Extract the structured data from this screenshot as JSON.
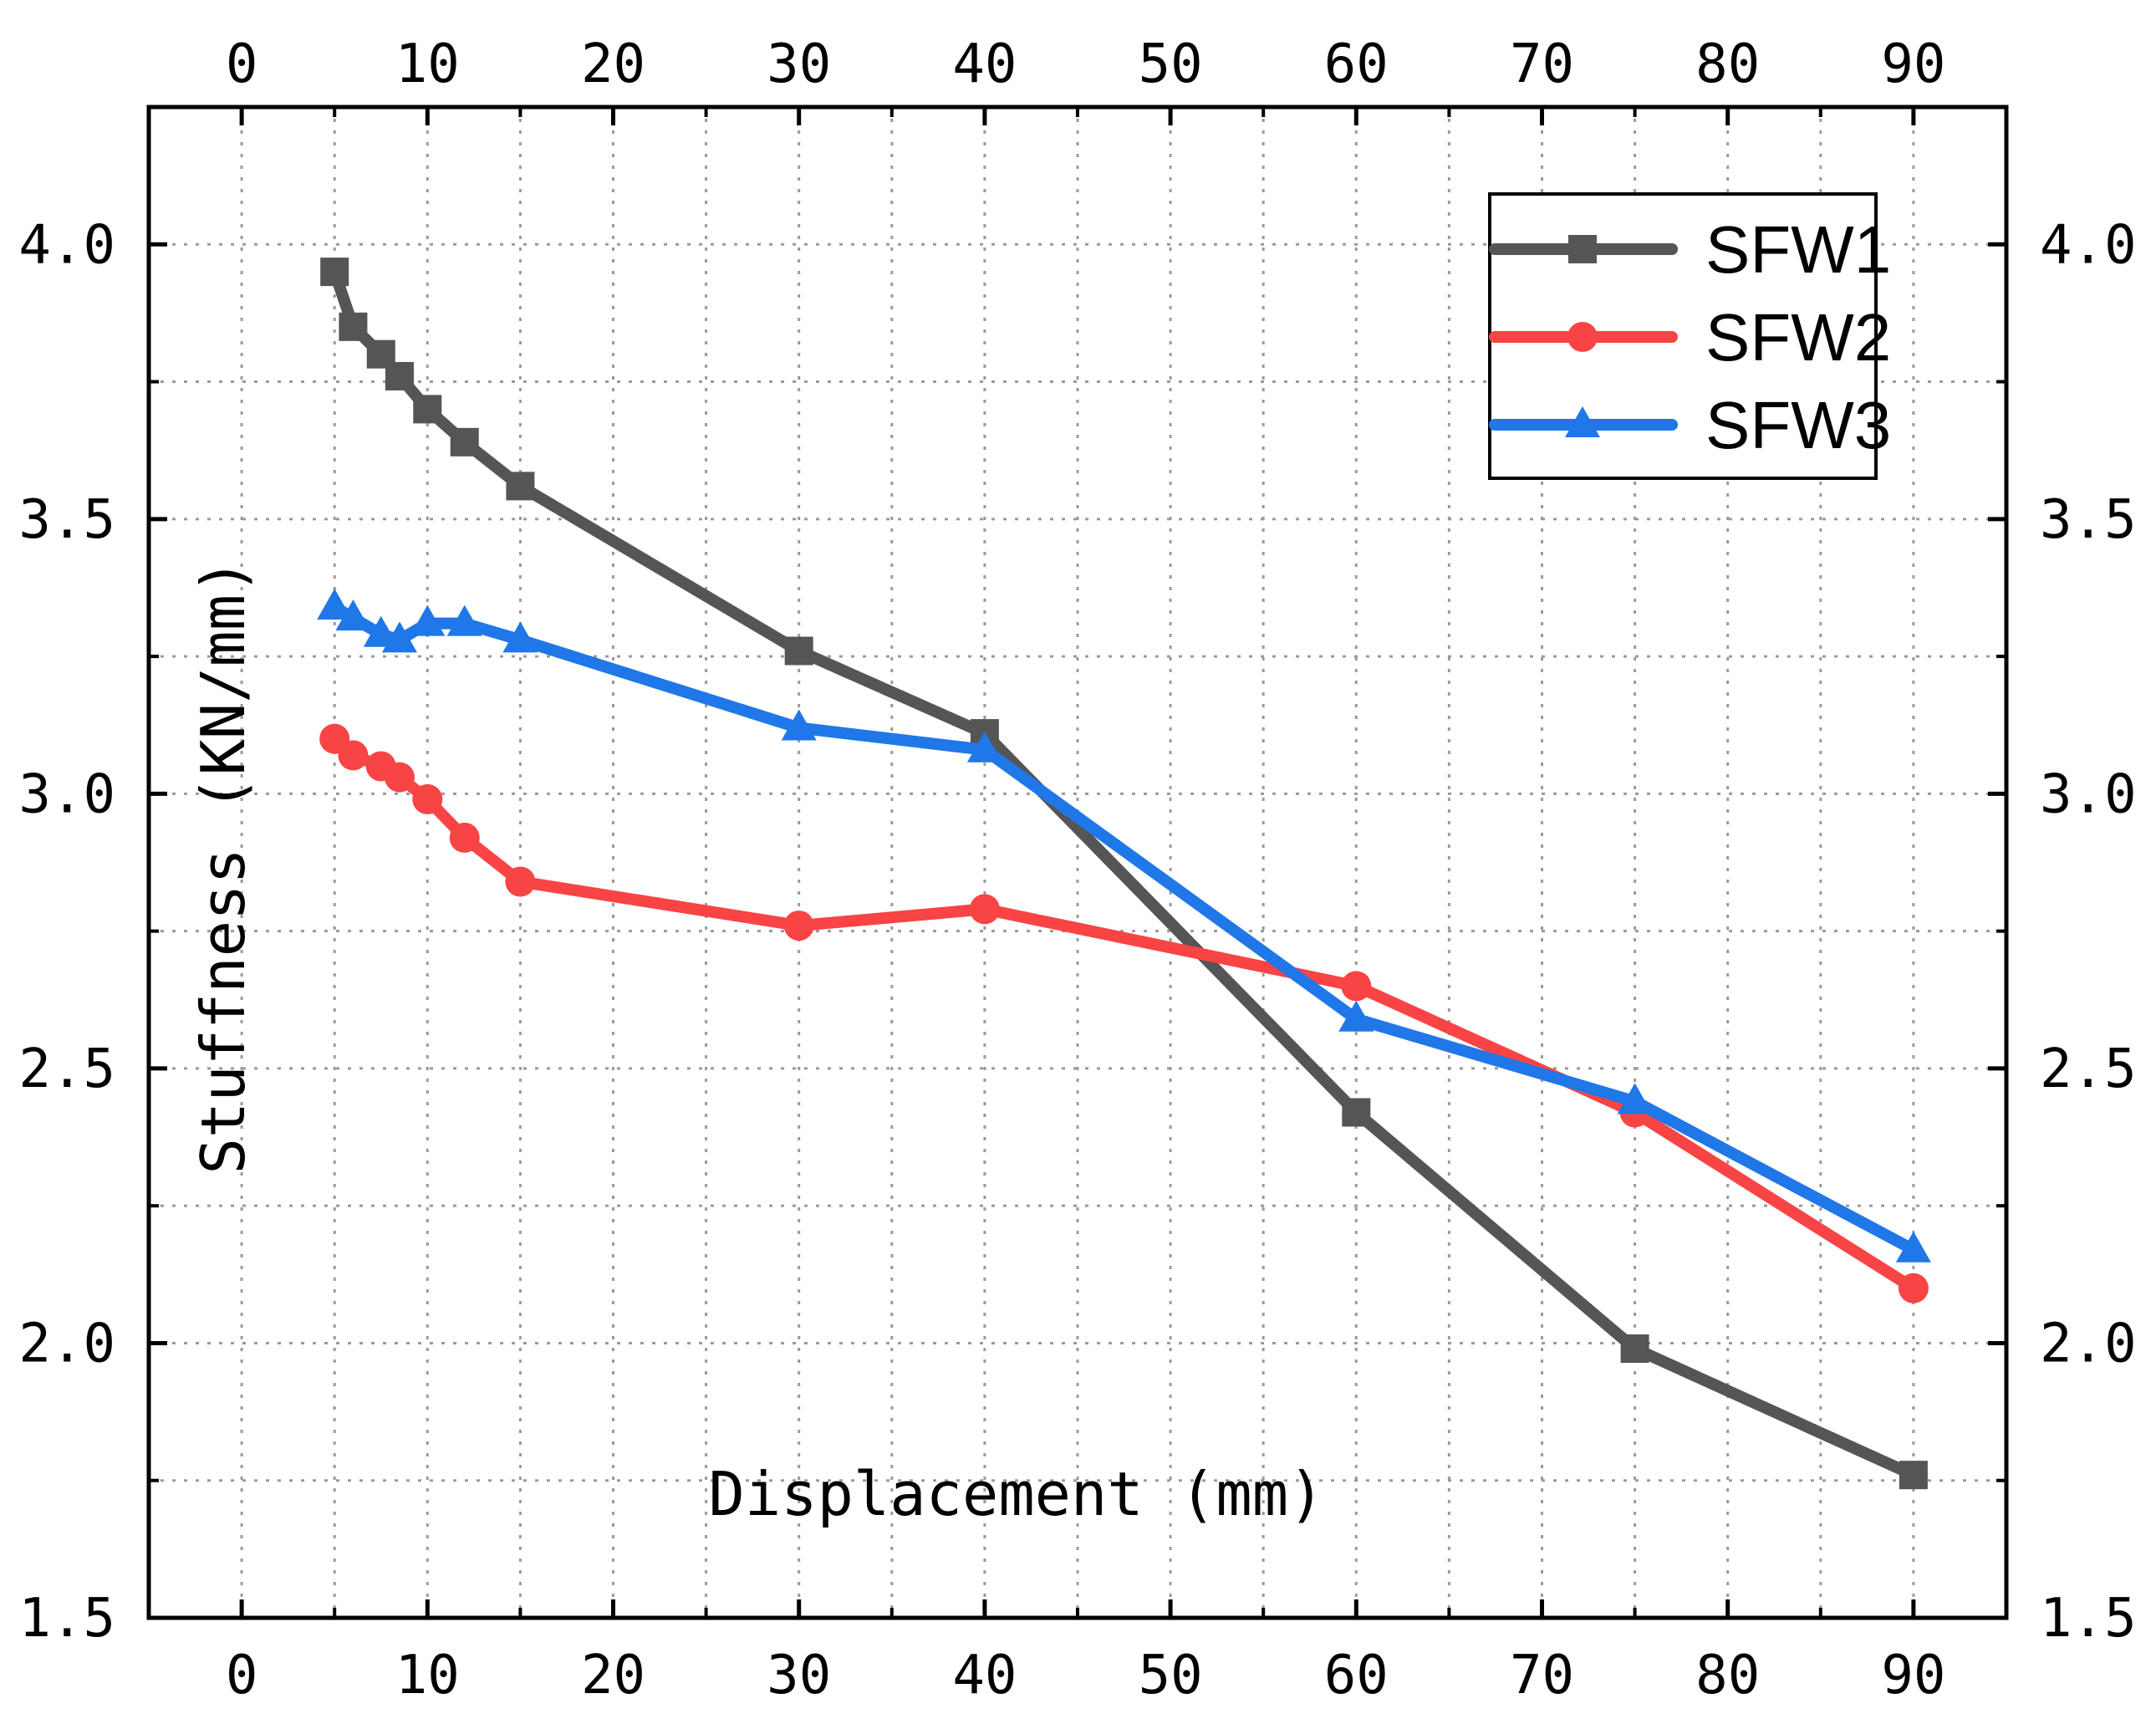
{
  "chart_data": {
    "type": "line",
    "title": "",
    "xlabel": "Displacement (mm)",
    "ylabel": "Stuffness (KN/mm)",
    "xlim": [
      -5,
      95
    ],
    "ylim": [
      1.5,
      4.25
    ],
    "grid": true,
    "legend_position": "top-right",
    "x_ticks": [
      0,
      10,
      20,
      30,
      40,
      50,
      60,
      70,
      80,
      90
    ],
    "x_tick_labels": [
      "0",
      "10",
      "20",
      "30",
      "40",
      "50",
      "60",
      "70",
      "80",
      "90"
    ],
    "y_ticks": [
      1.5,
      2.0,
      2.5,
      3.0,
      3.5,
      4.0
    ],
    "y_tick_labels": [
      "1.5",
      "2.0",
      "2.5",
      "3.0",
      "3.5",
      "4.0"
    ],
    "series": [
      {
        "name": "SFW1",
        "color": "#555555",
        "marker": "square",
        "x": [
          5,
          6,
          7.5,
          8.5,
          10,
          12,
          15,
          30,
          40,
          60,
          75,
          90
        ],
        "y": [
          3.95,
          3.85,
          3.8,
          3.76,
          3.7,
          3.64,
          3.56,
          3.26,
          3.11,
          2.42,
          1.99,
          1.76
        ]
      },
      {
        "name": "SFW2",
        "color": "#f84444",
        "marker": "circle",
        "x": [
          5,
          6,
          7.5,
          8.5,
          10,
          12,
          15,
          30,
          40,
          60,
          75,
          90
        ],
        "y": [
          3.1,
          3.07,
          3.05,
          3.03,
          2.99,
          2.92,
          2.84,
          2.76,
          2.79,
          2.65,
          2.42,
          2.1
        ]
      },
      {
        "name": "SFW3",
        "color": "#1f77e8",
        "marker": "triangle",
        "x": [
          5,
          6,
          7.5,
          8.5,
          10,
          12,
          15,
          30,
          40,
          60,
          75,
          90
        ],
        "y": [
          3.34,
          3.32,
          3.29,
          3.28,
          3.31,
          3.31,
          3.28,
          3.12,
          3.08,
          2.59,
          2.44,
          2.17
        ]
      }
    ]
  }
}
